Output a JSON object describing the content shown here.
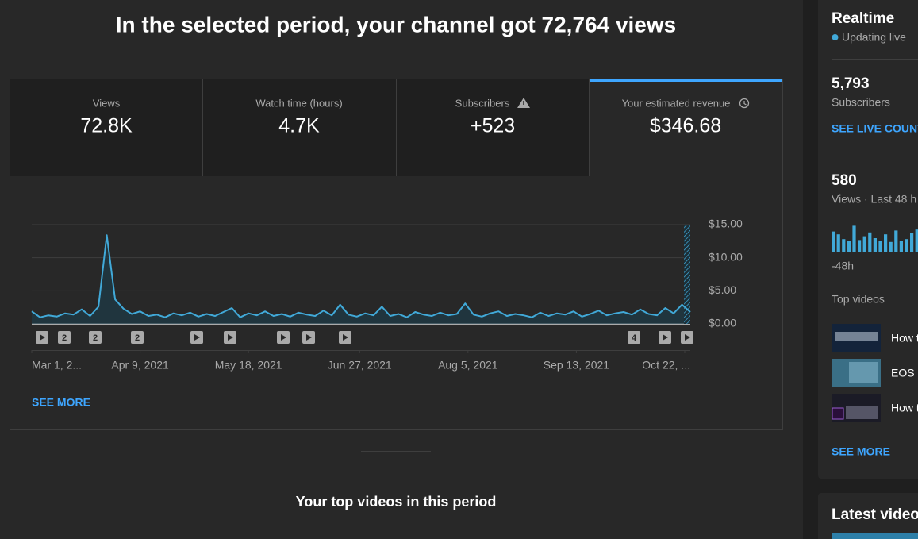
{
  "header": {
    "title": "In the selected period, your channel got 72,764 views"
  },
  "metrics": [
    {
      "label": "Views",
      "value": "72.8K"
    },
    {
      "label": "Watch time (hours)",
      "value": "4.7K"
    },
    {
      "label": "Subscribers",
      "value": "+523"
    },
    {
      "label": "Your estimated revenue",
      "value": "$346.68"
    }
  ],
  "chart_data": [
    {
      "type": "line",
      "color": "#41a9d8",
      "grid": true,
      "x": [
        "2021-03-01",
        "2021-03-04",
        "2021-03-07",
        "2021-03-10",
        "2021-03-13",
        "2021-03-16",
        "2021-03-19",
        "2021-03-22",
        "2021-03-25",
        "2021-03-28",
        "2021-03-31",
        "2021-04-03",
        "2021-04-06",
        "2021-04-09",
        "2021-04-12",
        "2021-04-15",
        "2021-04-18",
        "2021-04-21",
        "2021-04-24",
        "2021-04-27",
        "2021-04-30",
        "2021-05-03",
        "2021-05-06",
        "2021-05-09",
        "2021-05-12",
        "2021-05-15",
        "2021-05-18",
        "2021-05-21",
        "2021-05-24",
        "2021-05-27",
        "2021-05-30",
        "2021-06-02",
        "2021-06-05",
        "2021-06-08",
        "2021-06-11",
        "2021-06-14",
        "2021-06-17",
        "2021-06-20",
        "2021-06-23",
        "2021-06-26",
        "2021-06-29",
        "2021-07-02",
        "2021-07-05",
        "2021-07-08",
        "2021-07-11",
        "2021-07-14",
        "2021-07-17",
        "2021-07-20",
        "2021-07-23",
        "2021-07-26",
        "2021-07-29",
        "2021-08-01",
        "2021-08-04",
        "2021-08-07",
        "2021-08-10",
        "2021-08-13",
        "2021-08-16",
        "2021-08-19",
        "2021-08-22",
        "2021-08-25",
        "2021-08-28",
        "2021-08-31",
        "2021-09-03",
        "2021-09-06",
        "2021-09-09",
        "2021-09-12",
        "2021-09-15",
        "2021-09-18",
        "2021-09-21",
        "2021-09-24",
        "2021-09-27",
        "2021-09-30",
        "2021-10-03",
        "2021-10-06",
        "2021-10-09",
        "2021-10-12",
        "2021-10-15",
        "2021-10-18",
        "2021-10-21",
        "2021-10-24"
      ],
      "values": [
        1.9,
        1.0,
        1.3,
        1.1,
        1.6,
        1.4,
        2.2,
        1.2,
        2.6,
        13.4,
        3.7,
        2.3,
        1.5,
        1.9,
        1.2,
        1.4,
        1.0,
        1.6,
        1.3,
        1.7,
        1.1,
        1.5,
        1.2,
        1.8,
        2.4,
        1.0,
        1.6,
        1.3,
        1.9,
        1.2,
        1.5,
        1.1,
        1.7,
        1.4,
        1.2,
        2.0,
        1.3,
        2.9,
        1.4,
        1.1,
        1.6,
        1.3,
        2.6,
        1.2,
        1.5,
        1.0,
        1.8,
        1.4,
        1.2,
        1.7,
        1.3,
        1.5,
        3.1,
        1.4,
        1.1,
        1.6,
        1.9,
        1.2,
        1.5,
        1.3,
        1.0,
        1.7,
        1.2,
        1.6,
        1.4,
        1.9,
        1.1,
        1.5,
        2.0,
        1.3,
        1.6,
        1.8,
        1.4,
        2.2,
        1.5,
        1.3,
        2.4,
        1.6,
        2.9,
        1.8
      ],
      "xlim": [
        "2021-03-01",
        "2021-10-24"
      ],
      "xticks": [
        {
          "value": "2021-03-01",
          "label": "Mar 1, 2..."
        },
        {
          "value": "2021-04-09",
          "label": "Apr 9, 2021"
        },
        {
          "value": "2021-05-18",
          "label": "May 18, 2021"
        },
        {
          "value": "2021-06-27",
          "label": "Jun 27, 2021"
        },
        {
          "value": "2021-08-05",
          "label": "Aug 5, 2021"
        },
        {
          "value": "2021-09-13",
          "label": "Sep 13, 2021"
        },
        {
          "value": "2021-10-22",
          "label": "Oct 22, ..."
        }
      ],
      "ylim": [
        0,
        15
      ],
      "yticks": [
        {
          "value": 0,
          "label": "$0.00"
        },
        {
          "value": 5,
          "label": "$5.00"
        },
        {
          "value": 10,
          "label": "$10.00"
        },
        {
          "value": 15,
          "label": "$15.00"
        }
      ],
      "annotations": [
        "2",
        "2",
        "2",
        "4"
      ]
    },
    {
      "type": "bar",
      "color": "#41a9d8",
      "values": [
        22,
        19,
        14,
        12,
        28,
        13,
        17,
        21,
        15,
        12,
        19,
        11,
        23,
        12,
        14,
        20,
        24,
        10,
        18,
        13,
        16,
        22,
        15,
        19
      ],
      "ylim": [
        0,
        30
      ],
      "xlabel": "-48h"
    }
  ],
  "see_more": "SEE MORE",
  "top_videos_title": "Your top videos in this period",
  "realtime": {
    "title": "Realtime",
    "status": "Updating live",
    "subscribers_count": "5,793",
    "subscribers_label": "Subscribers",
    "live_count_link": "SEE LIVE COUNT",
    "views_count": "580",
    "views_label": "Views · Last 48 h",
    "top_videos_label": "Top videos",
    "videos": [
      "How t",
      "EOS R",
      "How t"
    ],
    "see_more": "SEE MORE"
  },
  "latest_video_title": "Latest video"
}
